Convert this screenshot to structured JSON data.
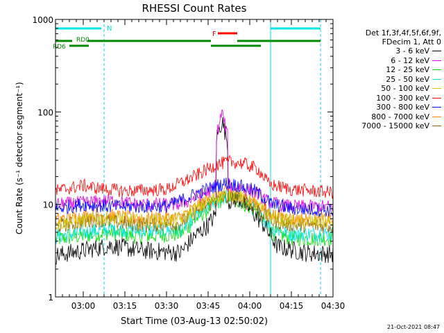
{
  "chart_data": {
    "type": "line",
    "title": "RHESSI Count Rates",
    "xlabel": "Start Time (03-Aug-13 02:50:02)",
    "ylabel": "Count Rate (s⁻¹ detector segment⁻¹)",
    "yscale": "log",
    "ylim": [
      1,
      1000
    ],
    "xlim_minutes": [
      0,
      100
    ],
    "x_tick_labels": [
      "03:00",
      "03:15",
      "03:30",
      "03:45",
      "04:00",
      "04:15",
      "04:30"
    ],
    "x_tick_minutes": [
      10,
      25,
      40,
      55,
      70,
      85,
      100
    ],
    "y_tick_labels": [
      "1",
      "10",
      "100",
      "1000"
    ],
    "y_tick_values": [
      1,
      10,
      100,
      1000
    ],
    "legend_header": [
      "Det 1f,3f,4f,5f,6f,9f,",
      "FDecim 1, Att 0"
    ],
    "series": [
      {
        "name": "3 - 6 keV",
        "color": "#000000",
        "baseline": [
          [
            0,
            2.8
          ],
          [
            20,
            3.6
          ],
          [
            30,
            3.2
          ],
          [
            45,
            3.0
          ],
          [
            50,
            4.5
          ],
          [
            55,
            6.0
          ],
          [
            60,
            9.5
          ],
          [
            63,
            11.0
          ],
          [
            66,
            11.5
          ],
          [
            70,
            9.0
          ],
          [
            75,
            6.0
          ],
          [
            80,
            3.5
          ],
          [
            90,
            3.0
          ],
          [
            100,
            2.9
          ]
        ],
        "peaks": [
          [
            58,
            52
          ],
          [
            60,
            80
          ],
          [
            62,
            48
          ]
        ]
      },
      {
        "name": "6 - 12 keV",
        "color": "#e000e0",
        "baseline": [
          [
            0,
            10.0
          ],
          [
            20,
            11.0
          ],
          [
            30,
            10.0
          ],
          [
            45,
            10.0
          ],
          [
            52,
            12.5
          ],
          [
            58,
            15.0
          ],
          [
            62,
            16.0
          ],
          [
            66,
            15.5
          ],
          [
            72,
            13.5
          ],
          [
            77,
            10.5
          ],
          [
            85,
            9.5
          ],
          [
            100,
            9.5
          ]
        ],
        "peaks": [
          [
            58,
            55
          ],
          [
            60,
            100
          ],
          [
            62,
            55
          ]
        ]
      },
      {
        "name": "12 - 25 keV",
        "color": "#00dd00",
        "baseline": [
          [
            0,
            4.2
          ],
          [
            20,
            5.0
          ],
          [
            30,
            4.5
          ],
          [
            45,
            4.8
          ],
          [
            52,
            7.5
          ],
          [
            58,
            10.5
          ],
          [
            62,
            12.0
          ],
          [
            66,
            11.0
          ],
          [
            72,
            8.5
          ],
          [
            78,
            5.0
          ],
          [
            85,
            4.3
          ],
          [
            100,
            4.3
          ]
        ],
        "peaks": []
      },
      {
        "name": "25 - 50 keV",
        "color": "#00e5e5",
        "baseline": [
          [
            0,
            4.5
          ],
          [
            20,
            5.5
          ],
          [
            30,
            5.2
          ],
          [
            45,
            5.3
          ],
          [
            52,
            8.0
          ],
          [
            58,
            11.0
          ],
          [
            62,
            12.5
          ],
          [
            66,
            11.5
          ],
          [
            72,
            9.0
          ],
          [
            78,
            5.5
          ],
          [
            85,
            4.8
          ],
          [
            100,
            4.8
          ]
        ],
        "peaks": []
      },
      {
        "name": "50 - 100 keV",
        "color": "#d8c800",
        "baseline": [
          [
            0,
            6.2
          ],
          [
            20,
            7.2
          ],
          [
            30,
            6.6
          ],
          [
            45,
            6.8
          ],
          [
            52,
            9.5
          ],
          [
            58,
            12.0
          ],
          [
            62,
            13.0
          ],
          [
            66,
            12.5
          ],
          [
            72,
            10.0
          ],
          [
            78,
            7.2
          ],
          [
            85,
            6.5
          ],
          [
            100,
            6.4
          ]
        ],
        "peaks": []
      },
      {
        "name": "100 - 300 keV",
        "color": "#ff0000",
        "baseline": [
          [
            0,
            14.0
          ],
          [
            10,
            16.0
          ],
          [
            15,
            15.0
          ],
          [
            25,
            14.0
          ],
          [
            40,
            14.5
          ],
          [
            50,
            20.0
          ],
          [
            58,
            27.0
          ],
          [
            63,
            29.0
          ],
          [
            68,
            27.5
          ],
          [
            73,
            24.0
          ],
          [
            77,
            16.5
          ],
          [
            85,
            14.5
          ],
          [
            100,
            13.5
          ]
        ],
        "peaks": []
      },
      {
        "name": "300 - 800 keV",
        "color": "#0000ff",
        "baseline": [
          [
            0,
            9.0
          ],
          [
            10,
            10.0
          ],
          [
            20,
            9.5
          ],
          [
            40,
            9.5
          ],
          [
            52,
            13.5
          ],
          [
            58,
            16.0
          ],
          [
            62,
            17.0
          ],
          [
            66,
            16.0
          ],
          [
            72,
            14.0
          ],
          [
            78,
            10.0
          ],
          [
            85,
            9.0
          ],
          [
            100,
            8.6
          ]
        ],
        "peaks": []
      },
      {
        "name": "800 - 7000 keV",
        "color": "#ff7f00",
        "baseline": [
          [
            0,
            6.8
          ],
          [
            15,
            7.8
          ],
          [
            30,
            7.0
          ],
          [
            45,
            7.2
          ],
          [
            52,
            10.0
          ],
          [
            58,
            12.5
          ],
          [
            62,
            13.5
          ],
          [
            66,
            13.0
          ],
          [
            72,
            10.5
          ],
          [
            78,
            7.8
          ],
          [
            85,
            7.0
          ],
          [
            100,
            6.8
          ]
        ],
        "peaks": []
      },
      {
        "name": "7000 - 15000 keV",
        "color": "#8b6914",
        "baseline": [
          [
            0,
            5.8
          ],
          [
            15,
            6.8
          ],
          [
            30,
            6.0
          ],
          [
            45,
            6.2
          ],
          [
            52,
            9.0
          ],
          [
            58,
            11.0
          ],
          [
            62,
            12.0
          ],
          [
            66,
            11.5
          ],
          [
            72,
            9.2
          ],
          [
            78,
            6.6
          ],
          [
            85,
            6.0
          ],
          [
            100,
            5.8
          ]
        ],
        "peaks": []
      }
    ],
    "annotations": {
      "vertical_lines_solid_minutes": [
        0,
        77.5
      ],
      "vertical_lines_dashed_minutes": [
        17.5,
        95.5
      ],
      "N_bars_minutes": [
        [
          0,
          16.5
        ],
        [
          77.5,
          95.5
        ]
      ],
      "N_label": "N",
      "N_label_minute": 18.5,
      "F_bar_minutes": [
        58.5,
        65.5
      ],
      "F_label": "F",
      "F_label_minute": 56.5,
      "RD0_label": "RD0",
      "RD0_segments_minutes": [
        [
          0,
          6
        ],
        [
          11.5,
          56
        ],
        [
          65.5,
          95.5
        ]
      ],
      "RD6_label": "RD6",
      "RD6_segments_minutes": [
        [
          5,
          12
        ],
        [
          56,
          74
        ]
      ]
    }
  },
  "timestamp": "21-Oct-2021 08:47"
}
